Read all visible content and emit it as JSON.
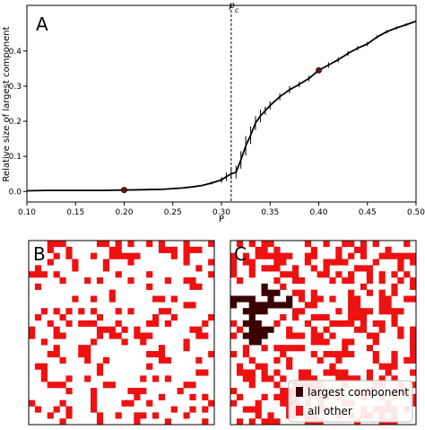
{
  "colors": {
    "largest": "#3a0000",
    "other": "#ee1111",
    "curve": "#000000",
    "marker": "#7a1010"
  },
  "chart_data": [
    {
      "type": "line",
      "panel": "A",
      "xlabel": "P",
      "ylabel": "Relative size of largest component",
      "xlim": [
        0.1,
        0.5
      ],
      "ylim": [
        -0.03,
        0.53
      ],
      "x_ticks": [
        "0.10",
        "0.15",
        "0.20",
        "0.25",
        "0.30",
        "0.35",
        "0.40",
        "0.45",
        "0.50"
      ],
      "y_ticks": [
        "0.0",
        "0.1",
        "0.2",
        "0.3",
        "0.4"
      ],
      "critical_line": {
        "x": 0.31,
        "label": "p",
        "label_sub": "c"
      },
      "series": [
        {
          "x": [
            0.1,
            0.12,
            0.14,
            0.16,
            0.18,
            0.2,
            0.22,
            0.24,
            0.26,
            0.27,
            0.28,
            0.29,
            0.3,
            0.305,
            0.31,
            0.315,
            0.32,
            0.325,
            0.33,
            0.335,
            0.34,
            0.345,
            0.35,
            0.36,
            0.37,
            0.38,
            0.39,
            0.4,
            0.41,
            0.42,
            0.43,
            0.44,
            0.45,
            0.46,
            0.47,
            0.48,
            0.49,
            0.5
          ],
          "y": [
            0.002,
            0.003,
            0.003,
            0.003,
            0.003,
            0.004,
            0.005,
            0.006,
            0.01,
            0.013,
            0.017,
            0.024,
            0.033,
            0.042,
            0.05,
            0.055,
            0.09,
            0.13,
            0.16,
            0.195,
            0.215,
            0.23,
            0.245,
            0.27,
            0.29,
            0.305,
            0.322,
            0.345,
            0.36,
            0.375,
            0.393,
            0.408,
            0.42,
            0.44,
            0.455,
            0.466,
            0.475,
            0.485
          ],
          "err": [
            0,
            0,
            0,
            0,
            0,
            0,
            0,
            0,
            0,
            0,
            0,
            0.004,
            0.008,
            0.012,
            0.015,
            0.018,
            0.025,
            0.028,
            0.025,
            0.02,
            0.018,
            0.012,
            0.012,
            0.01,
            0.01,
            0.008,
            0.008,
            0.008,
            0.008,
            0.007,
            0.007,
            0.006,
            0.006,
            0.005,
            0.005,
            0.004,
            0.004,
            0.004
          ]
        }
      ],
      "markers": [
        {
          "x": 0.2,
          "y": 0.004
        },
        {
          "x": 0.4,
          "y": 0.345
        }
      ]
    },
    {
      "type": "heatmap",
      "panel": "B",
      "grid_size": 30,
      "p": 0.2
    },
    {
      "type": "heatmap",
      "panel": "C",
      "grid_size": 30,
      "p": 0.4,
      "legend": [
        "largest component",
        "all other"
      ]
    }
  ],
  "panels": {
    "a": "A",
    "b": "B",
    "c": "C"
  }
}
